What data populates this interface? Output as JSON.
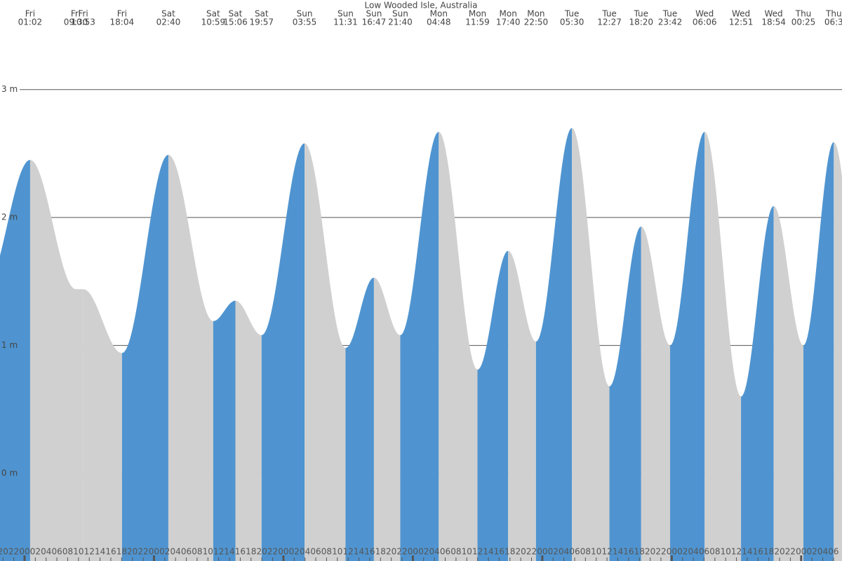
{
  "chart_data": {
    "type": "tide-area",
    "title": "Low Wooded Isle, Australia",
    "days": [
      "Fri",
      "Fri",
      "Fri",
      "Fri",
      "Sat",
      "Sat",
      "Sat",
      "Sat",
      "Sun",
      "Sun",
      "Sun",
      "Sun",
      "Mon",
      "Mon",
      "Mon",
      "Mon",
      "Tue",
      "Tue",
      "Tue",
      "Tue",
      "Wed",
      "Wed",
      "Wed",
      "Thu",
      "Thu"
    ],
    "times": [
      "01:02",
      "09:30",
      "10:53",
      "18:04",
      "02:40",
      "10:59",
      "15:06",
      "19:57",
      "03:55",
      "11:31",
      "16:47",
      "21:40",
      "04:48",
      "11:59",
      "17:40",
      "22:50",
      "05:30",
      "12:27",
      "18:20",
      "23:42",
      "06:06",
      "12:51",
      "18:54",
      "00:25",
      "06:3"
    ],
    "values": [
      2.45,
      1.44,
      1.44,
      0.94,
      2.49,
      1.19,
      1.35,
      1.08,
      2.58,
      0.98,
      1.53,
      1.08,
      2.67,
      0.81,
      1.74,
      1.03,
      2.7,
      0.68,
      1.93,
      1.0,
      2.67,
      0.6,
      2.09,
      1.0,
      2.59
    ],
    "rising_color": "#4f94d0",
    "falling_color": "#d0d0d0",
    "xlim": [
      -4.55,
      151.57
    ],
    "xticks": [
      {
        "value": -4,
        "label": "20"
      },
      {
        "value": -2,
        "label": "22"
      },
      {
        "value": 0,
        "label": "00"
      },
      {
        "value": 2,
        "label": "02"
      },
      {
        "value": 4,
        "label": "04"
      },
      {
        "value": 6,
        "label": "06"
      },
      {
        "value": 8,
        "label": "08"
      },
      {
        "value": 10,
        "label": "10"
      },
      {
        "value": 12,
        "label": "12"
      },
      {
        "value": 14,
        "label": "14"
      },
      {
        "value": 16,
        "label": "16"
      },
      {
        "value": 18,
        "label": "18"
      },
      {
        "value": 20,
        "label": "20"
      },
      {
        "value": 22,
        "label": "22"
      },
      {
        "value": 24,
        "label": "00"
      },
      {
        "value": 26,
        "label": "02"
      },
      {
        "value": 28,
        "label": "04"
      },
      {
        "value": 30,
        "label": "06"
      },
      {
        "value": 32,
        "label": "08"
      },
      {
        "value": 34,
        "label": "10"
      },
      {
        "value": 36,
        "label": "12"
      },
      {
        "value": 38,
        "label": "14"
      },
      {
        "value": 40,
        "label": "16"
      },
      {
        "value": 42,
        "label": "18"
      },
      {
        "value": 44,
        "label": "20"
      },
      {
        "value": 46,
        "label": "22"
      },
      {
        "value": 48,
        "label": "00"
      },
      {
        "value": 50,
        "label": "02"
      },
      {
        "value": 52,
        "label": "04"
      },
      {
        "value": 54,
        "label": "06"
      },
      {
        "value": 56,
        "label": "08"
      },
      {
        "value": 58,
        "label": "10"
      },
      {
        "value": 60,
        "label": "12"
      },
      {
        "value": 62,
        "label": "14"
      },
      {
        "value": 64,
        "label": "16"
      },
      {
        "value": 66,
        "label": "18"
      },
      {
        "value": 68,
        "label": "20"
      },
      {
        "value": 70,
        "label": "22"
      },
      {
        "value": 72,
        "label": "00"
      },
      {
        "value": 74,
        "label": "02"
      },
      {
        "value": 76,
        "label": "04"
      },
      {
        "value": 78,
        "label": "06"
      },
      {
        "value": 80,
        "label": "08"
      },
      {
        "value": 82,
        "label": "10"
      },
      {
        "value": 84,
        "label": "12"
      },
      {
        "value": 86,
        "label": "14"
      },
      {
        "value": 88,
        "label": "16"
      },
      {
        "value": 90,
        "label": "18"
      },
      {
        "value": 92,
        "label": "20"
      },
      {
        "value": 94,
        "label": "22"
      },
      {
        "value": 96,
        "label": "00"
      },
      {
        "value": 98,
        "label": "02"
      },
      {
        "value": 100,
        "label": "04"
      },
      {
        "value": 102,
        "label": "06"
      },
      {
        "value": 104,
        "label": "08"
      },
      {
        "value": 106,
        "label": "10"
      },
      {
        "value": 108,
        "label": "12"
      },
      {
        "value": 110,
        "label": "14"
      },
      {
        "value": 112,
        "label": "16"
      },
      {
        "value": 114,
        "label": "18"
      },
      {
        "value": 116,
        "label": "20"
      },
      {
        "value": 118,
        "label": "22"
      },
      {
        "value": 120,
        "label": "00"
      },
      {
        "value": 122,
        "label": "02"
      },
      {
        "value": 124,
        "label": "04"
      },
      {
        "value": 126,
        "label": "06"
      },
      {
        "value": 128,
        "label": "08"
      },
      {
        "value": 130,
        "label": "10"
      },
      {
        "value": 132,
        "label": "12"
      },
      {
        "value": 134,
        "label": "14"
      },
      {
        "value": 136,
        "label": "16"
      },
      {
        "value": 138,
        "label": "18"
      },
      {
        "value": 140,
        "label": "20"
      },
      {
        "value": 142,
        "label": "22"
      },
      {
        "value": 144,
        "label": "00"
      },
      {
        "value": 146,
        "label": "02"
      },
      {
        "value": 148,
        "label": "04"
      },
      {
        "value": 150,
        "label": "06"
      }
    ],
    "ylim": [
      -0.685,
      3.7
    ],
    "yticks": [
      {
        "value": 0,
        "label": "0 m"
      },
      {
        "value": 1,
        "label": "1 m"
      },
      {
        "value": 2,
        "label": "2 m"
      },
      {
        "value": 3,
        "label": "3 m"
      }
    ],
    "grid": true
  }
}
